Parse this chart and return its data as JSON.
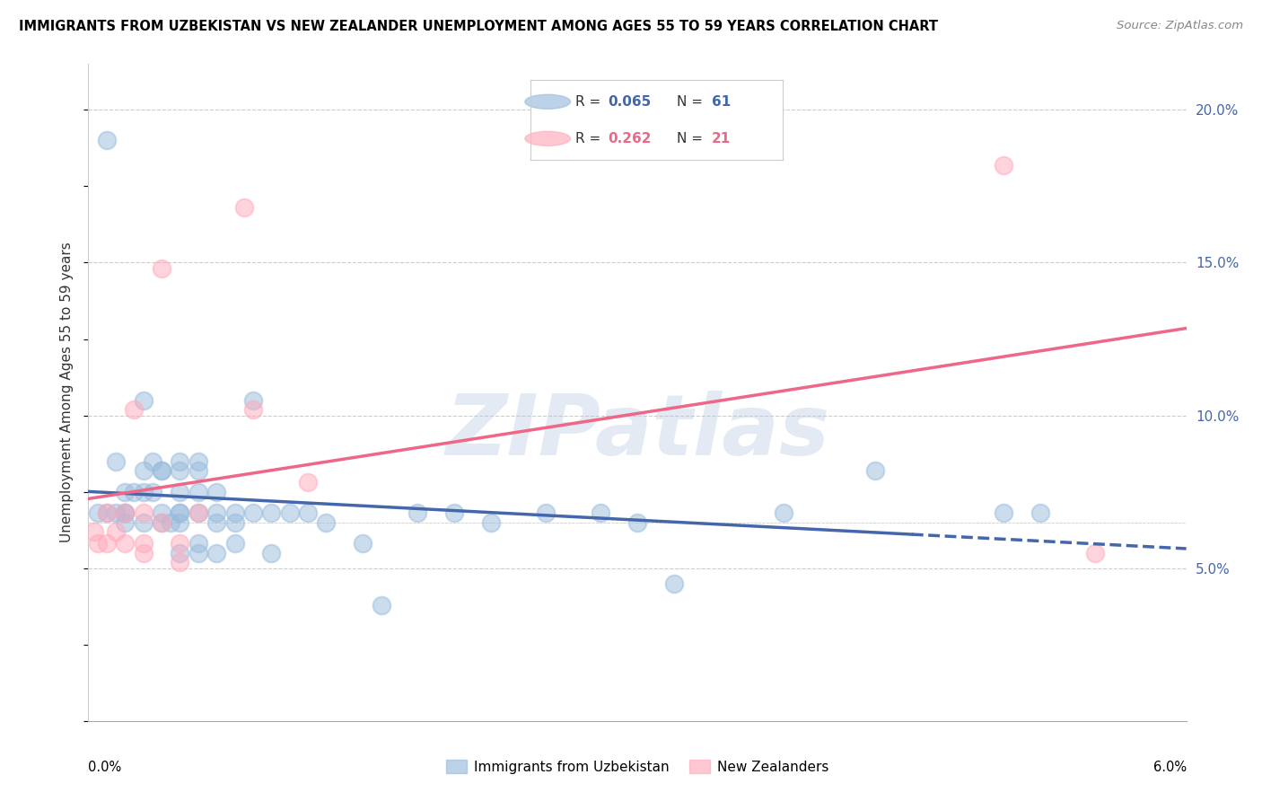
{
  "title": "IMMIGRANTS FROM UZBEKISTAN VS NEW ZEALANDER UNEMPLOYMENT AMONG AGES 55 TO 59 YEARS CORRELATION CHART",
  "source": "Source: ZipAtlas.com",
  "ylabel": "Unemployment Among Ages 55 to 59 years",
  "xlim": [
    0.0,
    0.06
  ],
  "ylim": [
    0.0,
    0.215
  ],
  "yticks": [
    0.05,
    0.1,
    0.15,
    0.2
  ],
  "ytick_labels": [
    "5.0%",
    "10.0%",
    "15.0%",
    "20.0%"
  ],
  "legend_r1": "R = 0.065",
  "legend_n1": "N = 61",
  "legend_r2": "R = 0.262",
  "legend_n2": "N = 21",
  "color_blue": "#99BBDD",
  "color_pink": "#FFAABB",
  "color_blue_line": "#4466AA",
  "color_pink_line": "#EE6688",
  "watermark": "ZIPatlas",
  "blue_scatter_x": [
    0.0005,
    0.001,
    0.001,
    0.0015,
    0.0015,
    0.002,
    0.002,
    0.002,
    0.002,
    0.0025,
    0.003,
    0.003,
    0.003,
    0.003,
    0.0035,
    0.0035,
    0.004,
    0.004,
    0.004,
    0.004,
    0.0045,
    0.005,
    0.005,
    0.005,
    0.005,
    0.005,
    0.005,
    0.005,
    0.006,
    0.006,
    0.006,
    0.006,
    0.006,
    0.006,
    0.007,
    0.007,
    0.007,
    0.007,
    0.008,
    0.008,
    0.008,
    0.009,
    0.009,
    0.01,
    0.01,
    0.011,
    0.012,
    0.013,
    0.015,
    0.016,
    0.018,
    0.02,
    0.022,
    0.025,
    0.028,
    0.03,
    0.032,
    0.038,
    0.043,
    0.05,
    0.052
  ],
  "blue_scatter_y": [
    0.068,
    0.19,
    0.068,
    0.085,
    0.068,
    0.068,
    0.068,
    0.065,
    0.075,
    0.075,
    0.105,
    0.082,
    0.075,
    0.065,
    0.085,
    0.075,
    0.082,
    0.082,
    0.068,
    0.065,
    0.065,
    0.085,
    0.082,
    0.075,
    0.068,
    0.068,
    0.065,
    0.055,
    0.085,
    0.082,
    0.075,
    0.068,
    0.058,
    0.055,
    0.075,
    0.068,
    0.065,
    0.055,
    0.068,
    0.065,
    0.058,
    0.105,
    0.068,
    0.068,
    0.055,
    0.068,
    0.068,
    0.065,
    0.058,
    0.038,
    0.068,
    0.068,
    0.065,
    0.068,
    0.068,
    0.065,
    0.045,
    0.068,
    0.082,
    0.068,
    0.068
  ],
  "pink_scatter_x": [
    0.0003,
    0.0005,
    0.001,
    0.001,
    0.0015,
    0.002,
    0.002,
    0.0025,
    0.003,
    0.003,
    0.003,
    0.004,
    0.004,
    0.005,
    0.005,
    0.006,
    0.0085,
    0.009,
    0.012,
    0.05,
    0.055
  ],
  "pink_scatter_y": [
    0.062,
    0.058,
    0.068,
    0.058,
    0.062,
    0.068,
    0.058,
    0.102,
    0.058,
    0.055,
    0.068,
    0.148,
    0.065,
    0.058,
    0.052,
    0.068,
    0.168,
    0.102,
    0.078,
    0.182,
    0.055
  ]
}
